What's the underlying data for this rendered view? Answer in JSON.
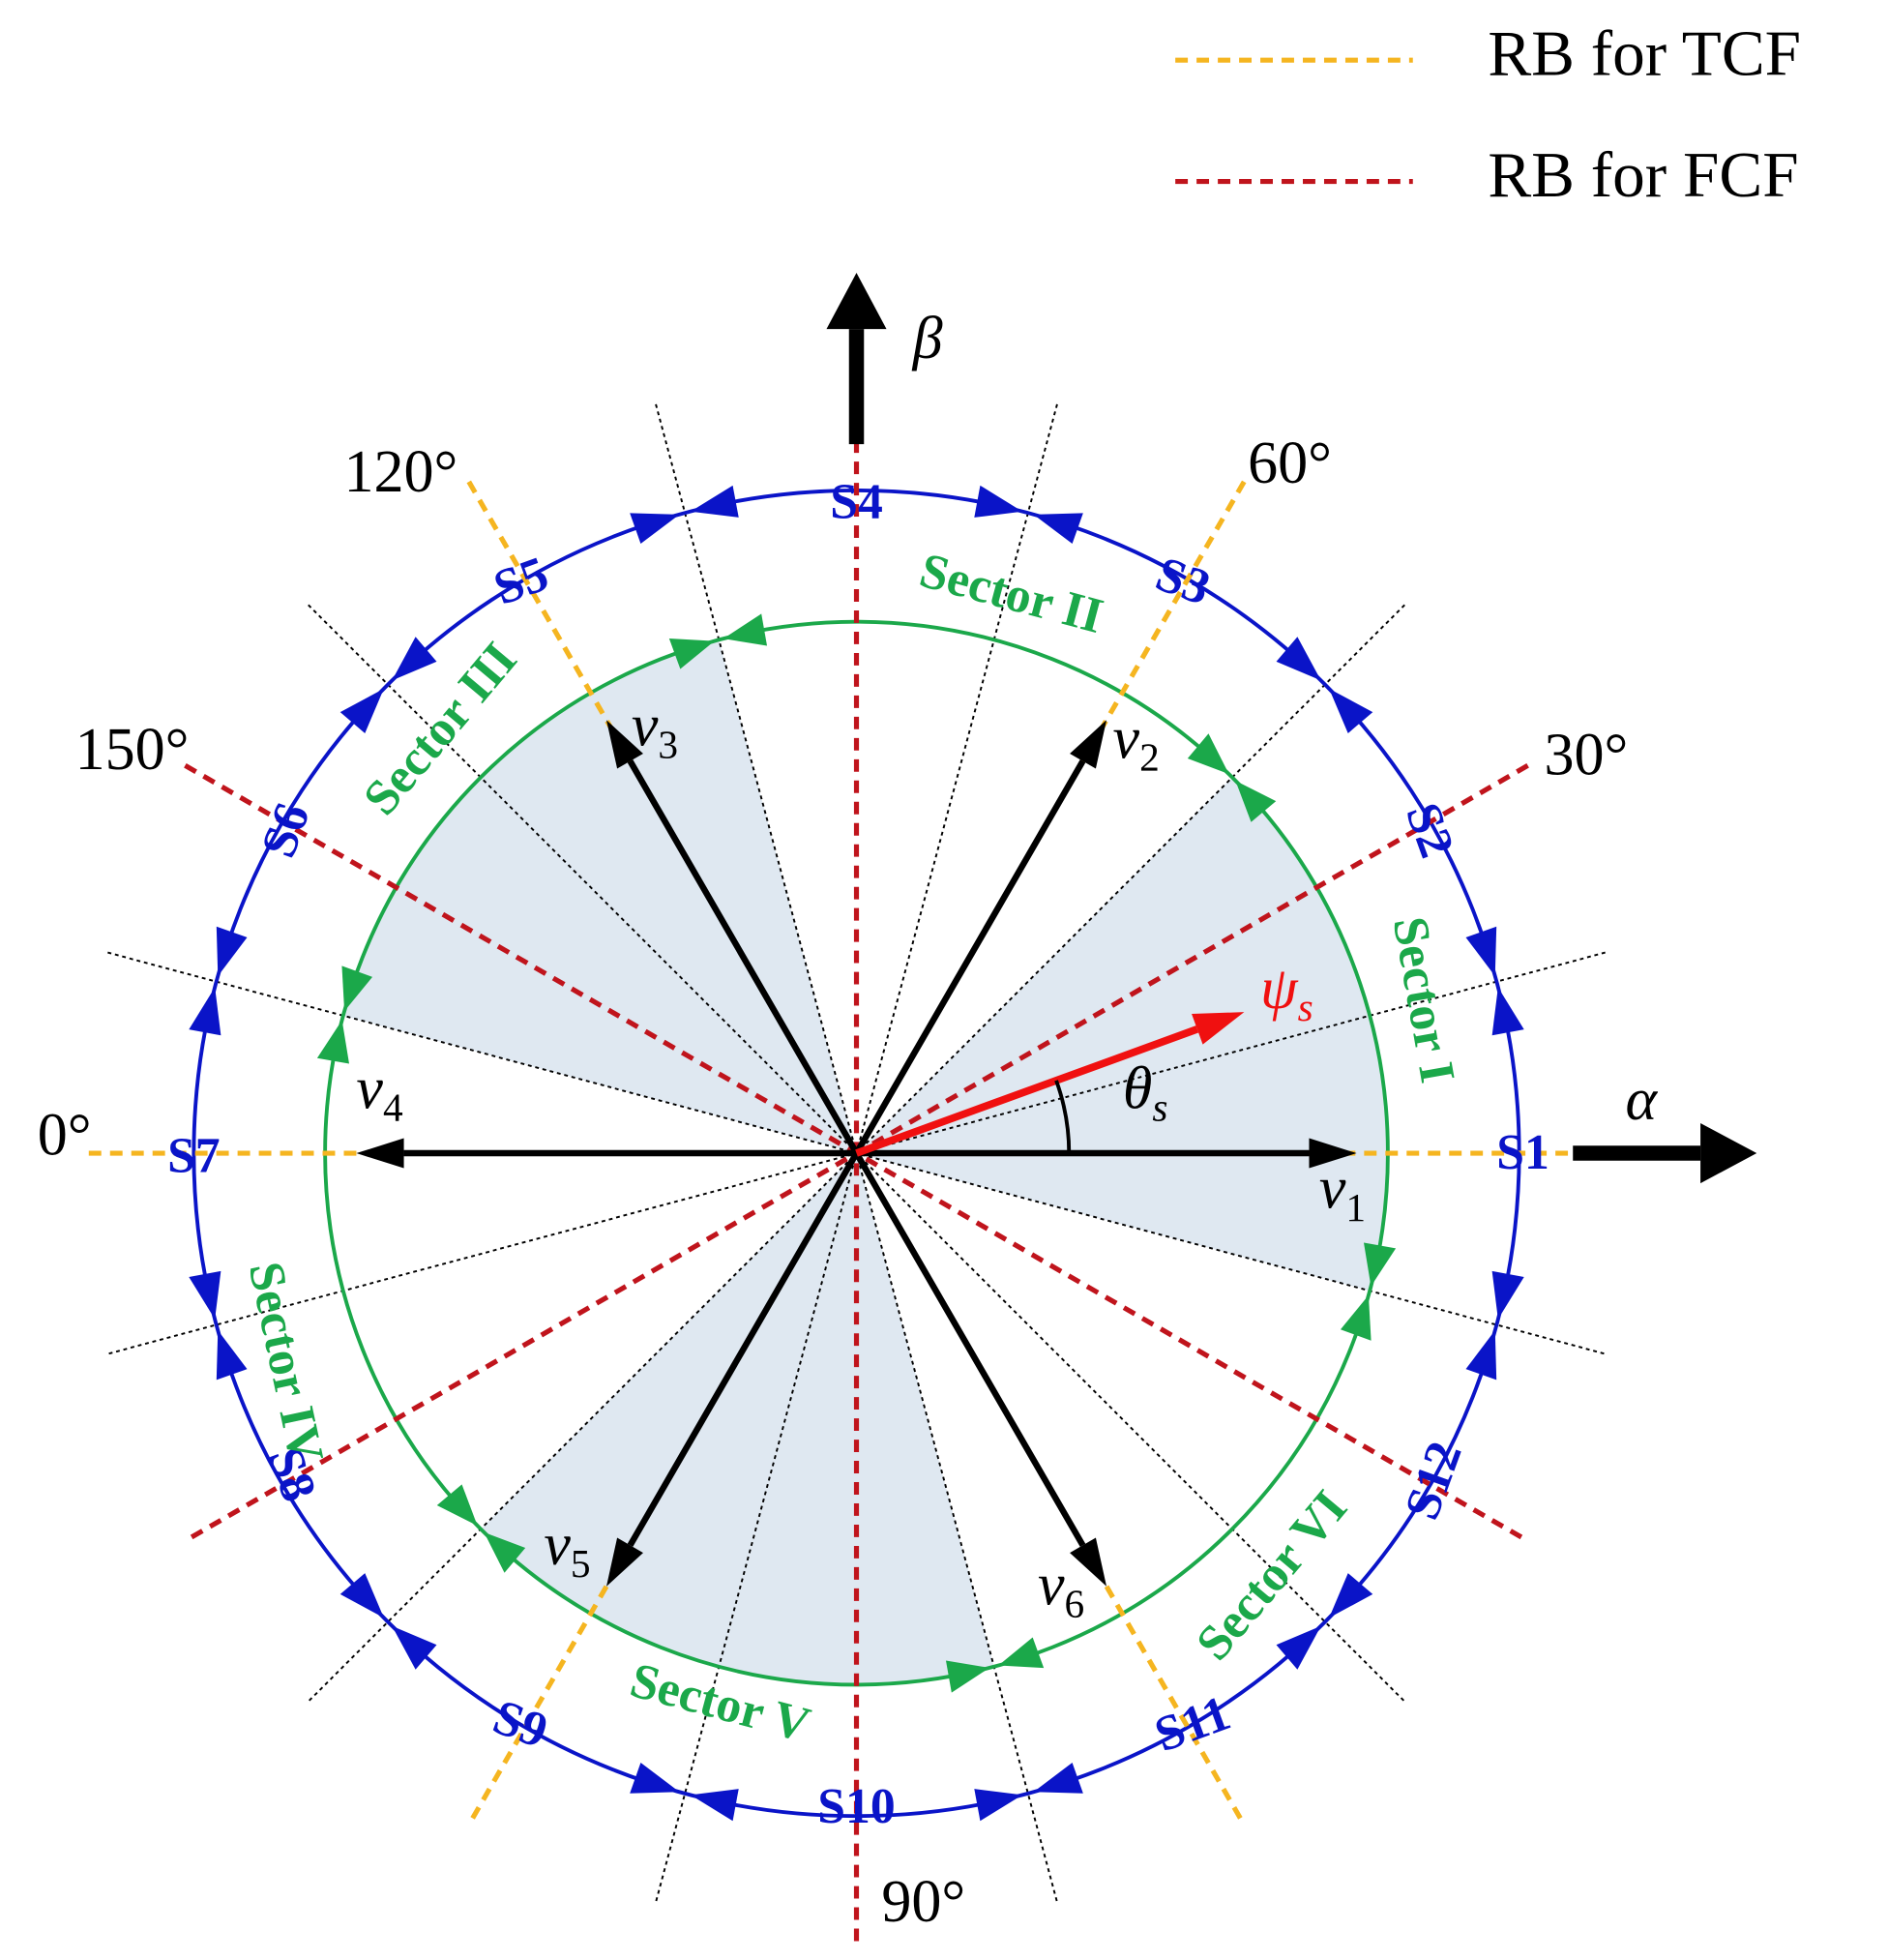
{
  "legend": [
    {
      "label": "RB for TCF",
      "color": "#f5b520"
    },
    {
      "label": "RB for FCF",
      "color": "#c0141c"
    }
  ],
  "axes": {
    "alpha": "α",
    "beta": "β"
  },
  "angle_labels": [
    "0°",
    "30°",
    "60°",
    "90°",
    "120°",
    "150°"
  ],
  "segments": [
    "S1",
    "S2",
    "S3",
    "S4",
    "S5",
    "S6",
    "S7",
    "S8",
    "S9",
    "S10",
    "S11",
    "S12"
  ],
  "sectors": [
    "Sector I",
    "Sector II",
    "Sector III",
    "Sector IV",
    "Sector V",
    "Sector VI"
  ],
  "vectors": [
    {
      "symbol": "v",
      "subscript": "1"
    },
    {
      "symbol": "v",
      "subscript": "2"
    },
    {
      "symbol": "v",
      "subscript": "3"
    },
    {
      "symbol": "v",
      "subscript": "4"
    },
    {
      "symbol": "v",
      "subscript": "5"
    },
    {
      "symbol": "v",
      "subscript": "6"
    }
  ],
  "flux": {
    "symbol": "ψ",
    "subscript": "s"
  },
  "angle": {
    "symbol": "θ",
    "subscript": "s"
  }
}
